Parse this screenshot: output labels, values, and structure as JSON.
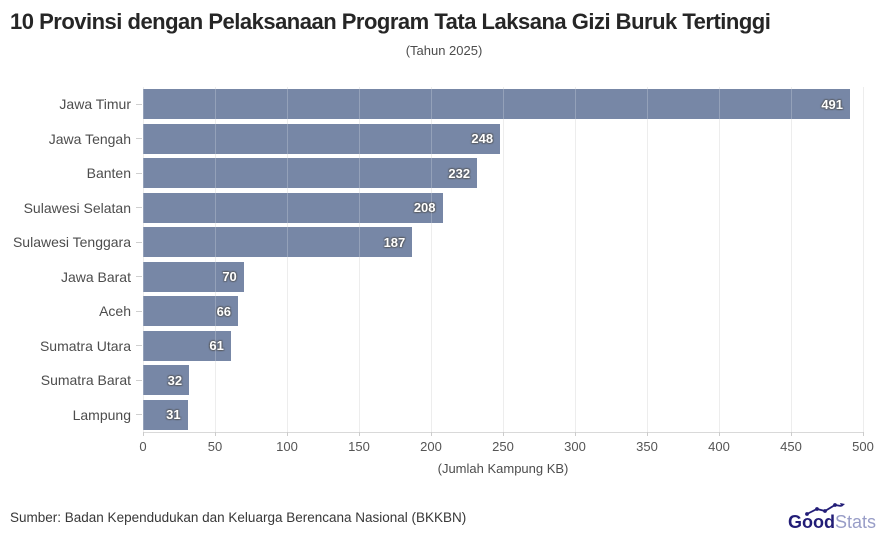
{
  "chart_data": {
    "type": "bar",
    "orientation": "horizontal",
    "title": "10 Provinsi dengan Pelaksanaan Program Tata Laksana Gizi Buruk Tertinggi",
    "subtitle": "(Tahun 2025)",
    "categories": [
      "Jawa Timur",
      "Jawa Tengah",
      "Banten",
      "Sulawesi Selatan",
      "Sulawesi Tenggara",
      "Jawa Barat",
      "Aceh",
      "Sumatra Utara",
      "Sumatra Barat",
      "Lampung"
    ],
    "values": [
      491,
      248,
      232,
      208,
      187,
      70,
      66,
      61,
      32,
      31
    ],
    "xlabel": "(Jumlah Kampung KB)",
    "xlim": [
      0,
      500
    ],
    "xticks": [
      0,
      50,
      100,
      150,
      200,
      250,
      300,
      350,
      400,
      450,
      500
    ],
    "grid": true,
    "legend": "none",
    "bar_color": "#7787a6",
    "value_label_color": "#ffffff"
  },
  "footer": {
    "source": "Sumber: Badan Kependudukan dan Keluarga Berencana Nasional (BKKBN)",
    "logo_good": "Good",
    "logo_stats": "Stats",
    "logo_good_color": "#221d77",
    "logo_stats_color": "#989dc7"
  }
}
